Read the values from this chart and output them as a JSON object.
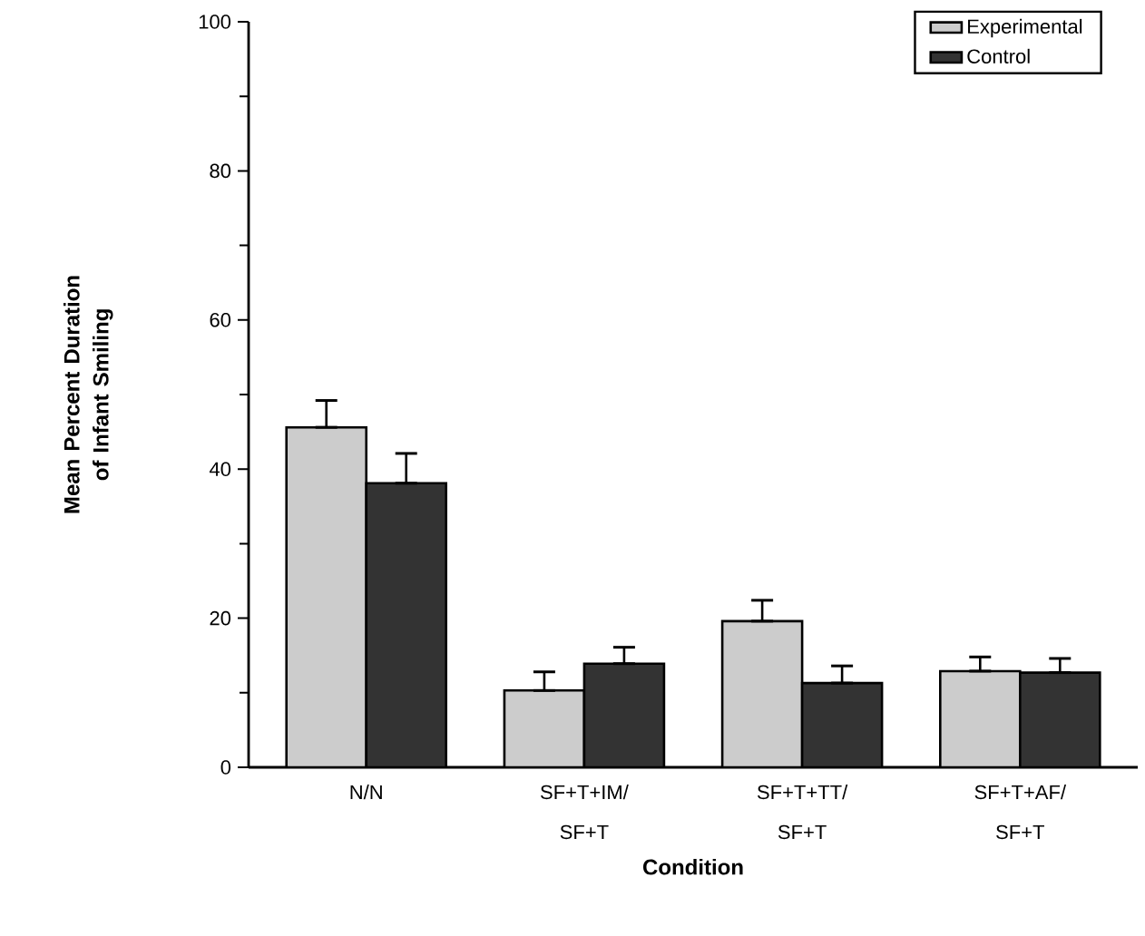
{
  "chart_data": {
    "type": "bar",
    "xlabel": "Condition",
    "ylabel": "Mean Percent Duration of Infant Smiling",
    "categories": [
      "N/N",
      "SF+T+IM/ SF+T",
      "SF+T+TT/ SF+T",
      "SF+T+AF/ SF+T"
    ],
    "series": [
      {
        "name": "Experimental",
        "color": "#cccccc",
        "values": [
          45.6,
          10.3,
          19.6,
          12.9
        ],
        "errors": [
          [
            45.6,
            49.2
          ],
          [
            10.3,
            12.8
          ],
          [
            19.6,
            22.4
          ],
          [
            12.9,
            14.8
          ]
        ]
      },
      {
        "name": "Control",
        "color": "#333333",
        "values": [
          38.1,
          13.9,
          11.3,
          12.7
        ],
        "errors": [
          [
            38.1,
            42.1
          ],
          [
            13.9,
            16.1
          ],
          [
            11.3,
            13.6
          ],
          [
            12.7,
            14.6
          ]
        ]
      }
    ],
    "ylim": [
      0,
      100
    ],
    "yticks": [
      0,
      20,
      40,
      60,
      80,
      100
    ],
    "grid": false,
    "legend": "top right"
  }
}
